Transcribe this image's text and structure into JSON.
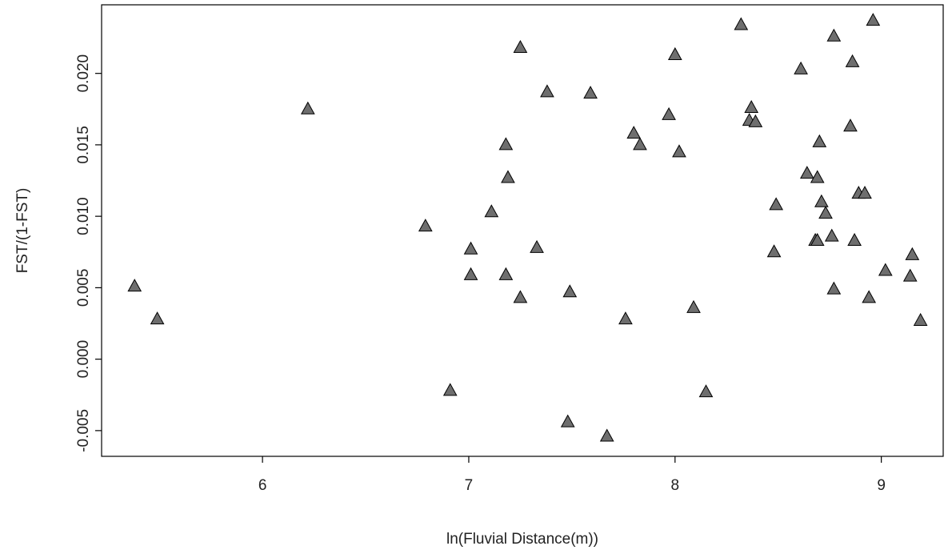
{
  "chart_data": {
    "type": "scatter",
    "title": "",
    "xlabel": "ln(Fluvial Distance(m))",
    "ylabel": "FST/(1-FST)",
    "xlim": [
      5.22,
      9.3
    ],
    "ylim": [
      -0.0068,
      0.0248
    ],
    "xticks": [
      6,
      7,
      8,
      9
    ],
    "xtick_labels": [
      "6",
      "7",
      "8",
      "9"
    ],
    "yticks": [
      -0.005,
      0.0,
      0.005,
      0.01,
      0.015,
      0.02
    ],
    "ytick_labels": [
      "-0.005",
      "0.000",
      "0.005",
      "0.010",
      "0.015",
      "0.020"
    ],
    "marker": "filled-triangle",
    "marker_color": "#6e6e6e",
    "grid": false,
    "points": [
      {
        "x": 5.38,
        "y": 0.0051
      },
      {
        "x": 5.49,
        "y": 0.0028
      },
      {
        "x": 6.22,
        "y": 0.0175
      },
      {
        "x": 6.79,
        "y": 0.0093
      },
      {
        "x": 6.91,
        "y": -0.0022
      },
      {
        "x": 7.01,
        "y": 0.0077
      },
      {
        "x": 7.01,
        "y": 0.0059
      },
      {
        "x": 7.11,
        "y": 0.0103
      },
      {
        "x": 7.18,
        "y": 0.015
      },
      {
        "x": 7.19,
        "y": 0.0127
      },
      {
        "x": 7.18,
        "y": 0.0059
      },
      {
        "x": 7.25,
        "y": 0.0218
      },
      {
        "x": 7.25,
        "y": 0.0043
      },
      {
        "x": 7.33,
        "y": 0.0078
      },
      {
        "x": 7.38,
        "y": 0.0187
      },
      {
        "x": 7.48,
        "y": -0.0044
      },
      {
        "x": 7.49,
        "y": 0.0047
      },
      {
        "x": 7.59,
        "y": 0.0186
      },
      {
        "x": 7.67,
        "y": -0.0054
      },
      {
        "x": 7.76,
        "y": 0.0028
      },
      {
        "x": 7.8,
        "y": 0.0158
      },
      {
        "x": 7.83,
        "y": 0.015
      },
      {
        "x": 7.97,
        "y": 0.0171
      },
      {
        "x": 8.0,
        "y": 0.0213
      },
      {
        "x": 8.02,
        "y": 0.0145
      },
      {
        "x": 8.09,
        "y": 0.0036
      },
      {
        "x": 8.15,
        "y": -0.0023
      },
      {
        "x": 8.32,
        "y": 0.0234
      },
      {
        "x": 8.36,
        "y": 0.0167
      },
      {
        "x": 8.37,
        "y": 0.0176
      },
      {
        "x": 8.39,
        "y": 0.0166
      },
      {
        "x": 8.48,
        "y": 0.0075
      },
      {
        "x": 8.49,
        "y": 0.0108
      },
      {
        "x": 8.61,
        "y": 0.0203
      },
      {
        "x": 8.64,
        "y": 0.013
      },
      {
        "x": 8.68,
        "y": 0.0083
      },
      {
        "x": 8.69,
        "y": 0.0127
      },
      {
        "x": 8.69,
        "y": 0.0083
      },
      {
        "x": 8.7,
        "y": 0.0152
      },
      {
        "x": 8.71,
        "y": 0.011
      },
      {
        "x": 8.73,
        "y": 0.0102
      },
      {
        "x": 8.76,
        "y": 0.0086
      },
      {
        "x": 8.77,
        "y": 0.0049
      },
      {
        "x": 8.77,
        "y": 0.0226
      },
      {
        "x": 8.85,
        "y": 0.0163
      },
      {
        "x": 8.86,
        "y": 0.0208
      },
      {
        "x": 8.87,
        "y": 0.0083
      },
      {
        "x": 8.89,
        "y": 0.0116
      },
      {
        "x": 8.92,
        "y": 0.0116
      },
      {
        "x": 8.94,
        "y": 0.0043
      },
      {
        "x": 8.96,
        "y": 0.0237
      },
      {
        "x": 9.02,
        "y": 0.0062
      },
      {
        "x": 9.14,
        "y": 0.0058
      },
      {
        "x": 9.15,
        "y": 0.0073
      },
      {
        "x": 9.19,
        "y": 0.0027
      }
    ]
  }
}
